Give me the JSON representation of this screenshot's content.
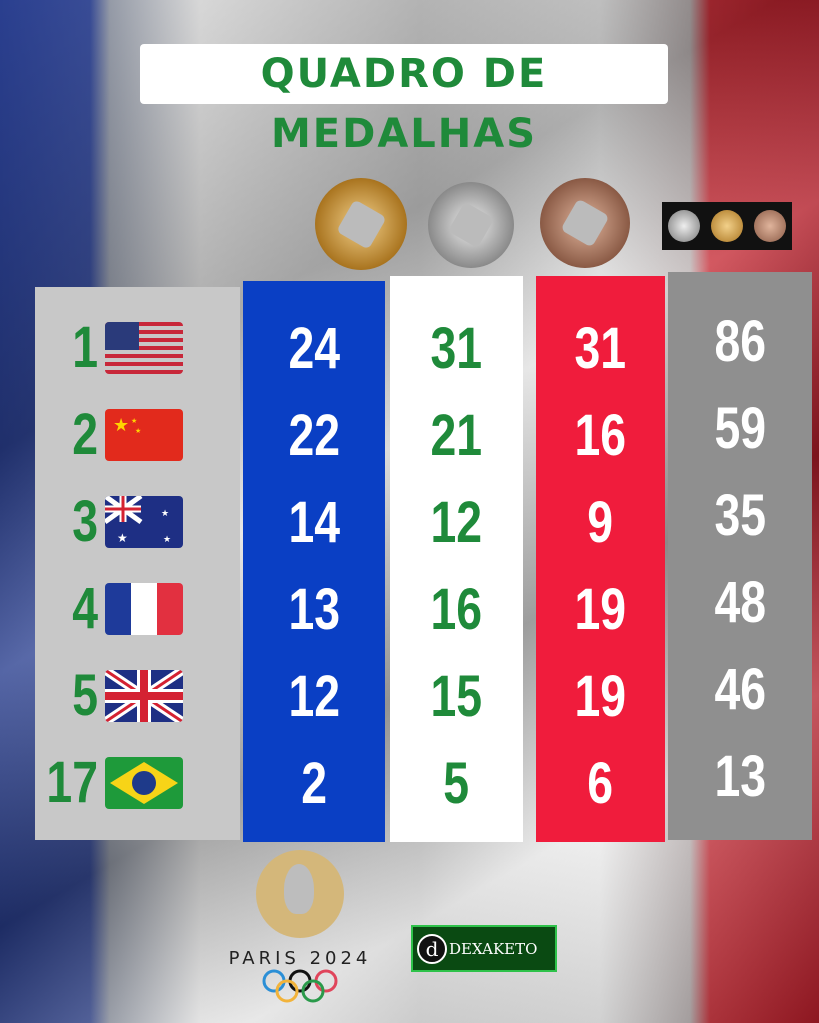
{
  "title": "QUADRO DE MEDALHAS",
  "columns": [
    "gold",
    "silver",
    "bronze",
    "total"
  ],
  "colors": {
    "gold_col": "#0a3fc4",
    "silver_col": "#ffffff",
    "bronze_col": "#f01c3c",
    "total_col": "#8f8f8f",
    "green": "#1f8a3a"
  },
  "rows": [
    {
      "rank": "1",
      "country": "United States",
      "flag": "us-flag",
      "gold": "24",
      "silver": "31",
      "bronze": "31",
      "total": "86"
    },
    {
      "rank": "2",
      "country": "China",
      "flag": "cn-flag",
      "gold": "22",
      "silver": "21",
      "bronze": "16",
      "total": "59"
    },
    {
      "rank": "3",
      "country": "Australia",
      "flag": "au-flag",
      "gold": "14",
      "silver": "12",
      "bronze": "9",
      "total": "35"
    },
    {
      "rank": "4",
      "country": "France",
      "flag": "fr-flag",
      "gold": "13",
      "silver": "16",
      "bronze": "19",
      "total": "48"
    },
    {
      "rank": "5",
      "country": "United Kingdom",
      "flag": "gb-flag",
      "gold": "12",
      "silver": "15",
      "bronze": "19",
      "total": "46"
    },
    {
      "rank": "17",
      "country": "Brazil",
      "flag": "br-flag",
      "gold": "2",
      "silver": "5",
      "bronze": "6",
      "total": "13"
    }
  ],
  "footer": {
    "paris_logo": "PARIS 2024",
    "brand": "DEXAKETO"
  }
}
